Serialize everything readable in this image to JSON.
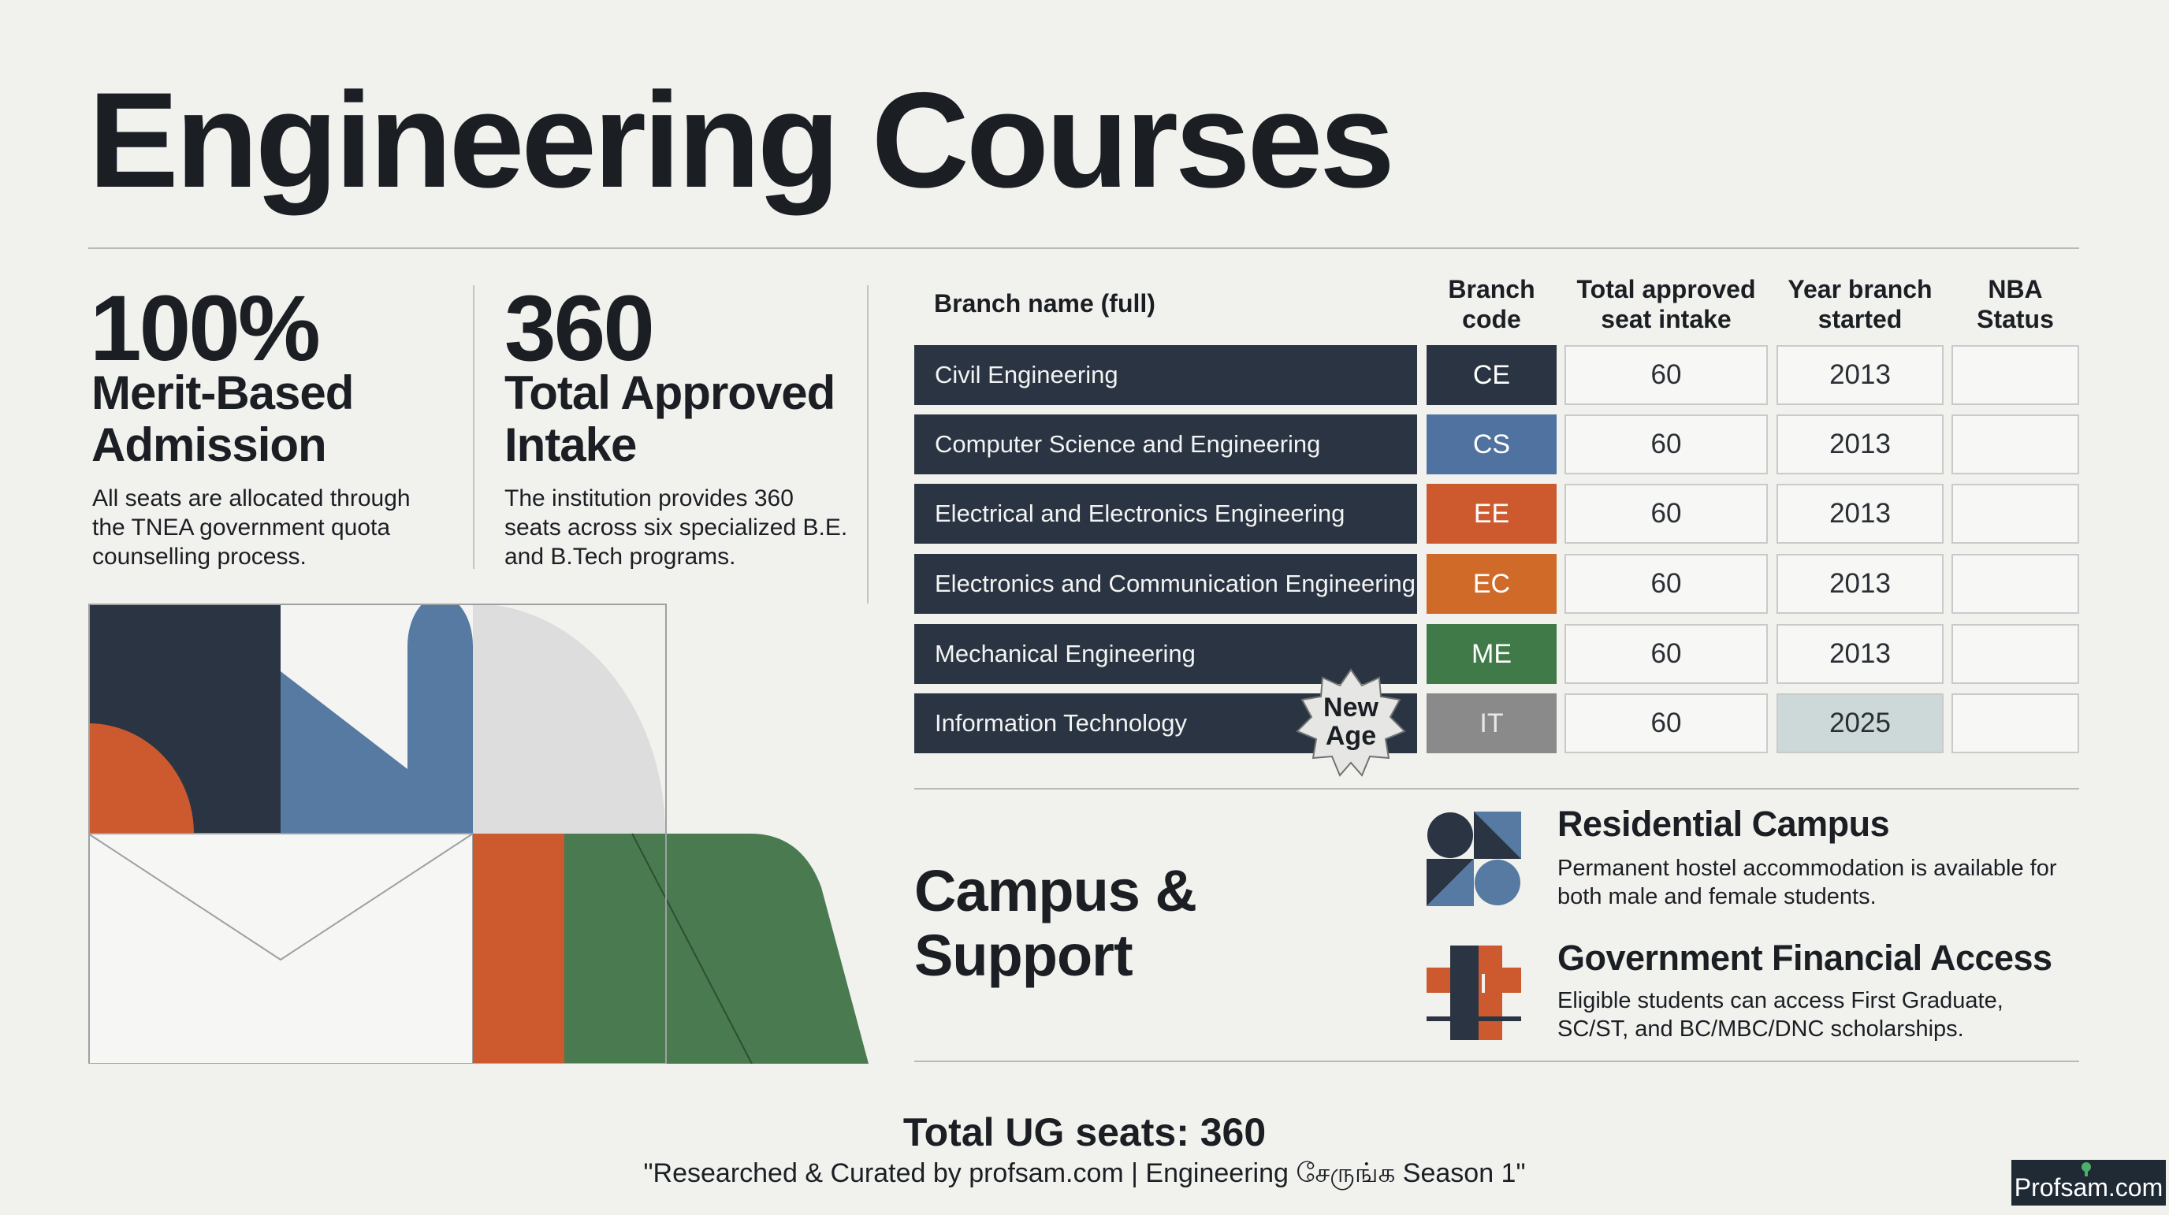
{
  "title": "Engineering Courses",
  "stats": [
    {
      "number": "100%",
      "heading_line1": "Merit-Based",
      "heading_line2": "Admission",
      "description": "All seats are allocated through the TNEA government quota counselling process."
    },
    {
      "number": "360",
      "heading_line1": "Total Approved",
      "heading_line2": "Intake",
      "description": "The institution provides 360 seats across six specialized B.E. and B.Tech programs."
    }
  ],
  "table": {
    "headers": {
      "name": "Branch name (full)",
      "code_line1": "Branch",
      "code_line2": "code",
      "seats_line1": "Total approved",
      "seats_line2": "seat intake",
      "year_line1": "Year branch",
      "year_line2": "started",
      "nba_line1": "NBA",
      "nba_line2": "Status"
    },
    "rows": [
      {
        "name": "Civil Engineering",
        "code": "CE",
        "seats": "60",
        "year": "2013",
        "nba": "",
        "color": "#2b3442"
      },
      {
        "name": "Computer Science and Engineering",
        "code": "CS",
        "seats": "60",
        "year": "2013",
        "nba": "",
        "color": "#4f72a0"
      },
      {
        "name": "Electrical and Electronics Engineering",
        "code": "EE",
        "seats": "60",
        "year": "2013",
        "nba": "",
        "color": "#cc5a2e"
      },
      {
        "name": "Electronics and Communication Engineering",
        "code": "EC",
        "seats": "60",
        "year": "2013",
        "nba": "",
        "color": "#cf6a28"
      },
      {
        "name": "Mechanical Engineering",
        "code": "ME",
        "seats": "60",
        "year": "2013",
        "nba": "",
        "color": "#3f7a48"
      },
      {
        "name": "Information Technology",
        "code": "IT",
        "seats": "60",
        "year": "2025",
        "nba": "",
        "color": "#8b8a8a"
      }
    ],
    "badge_line1": "New",
    "badge_line2": "Age"
  },
  "campus": {
    "title_line1": "Campus &",
    "title_line2": "Support",
    "features": [
      {
        "title": "Residential Campus",
        "description": "Permanent hostel accommodation is available for both male and female students."
      },
      {
        "title": "Government Financial Access",
        "description": "Eligible students can access First Graduate, SC/ST, and BC/MBC/DNC scholarships."
      }
    ]
  },
  "footer": {
    "total": "Total UG seats: 360",
    "credit": "\"Researched & Curated by profsam.com | Engineering சேருங்க Season 1\"",
    "brand": "Profsam.com"
  },
  "colors": {
    "navy": "#2b3442",
    "blue": "#4f72a0",
    "orange": "#cc5a2e",
    "green": "#3f7a48",
    "highlight": "#cdd9d9"
  },
  "icons": [
    "geometric-collage",
    "residential-campus-icon",
    "financial-access-icon",
    "new-age-badge-icon",
    "profsam-logo-icon"
  ]
}
